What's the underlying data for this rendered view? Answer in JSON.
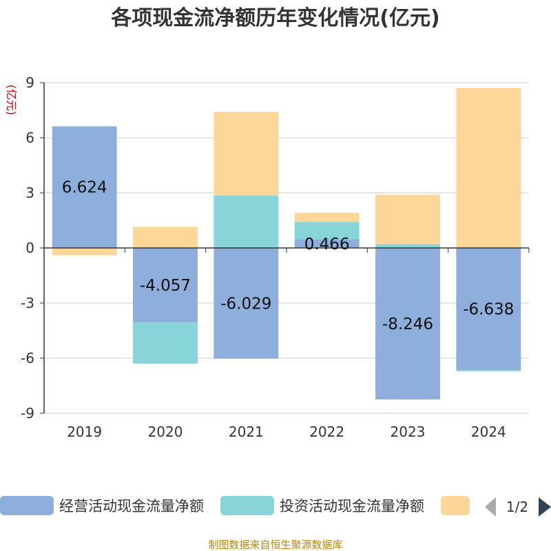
{
  "chart_data": {
    "type": "bar",
    "stacked": true,
    "title": "各项现金流净额历年变化情况(亿元)",
    "ylabel": "(亿元)",
    "xlabel": "",
    "ylim": [
      -9,
      9
    ],
    "yticks": [
      9,
      6,
      3,
      0,
      -3,
      -6,
      -9
    ],
    "grid": true,
    "categories": [
      "2019",
      "2020",
      "2021",
      "2022",
      "2023",
      "2024"
    ],
    "series": [
      {
        "name": "经营活动现金流量净额",
        "color": "#8eaedb",
        "values": [
          6.624,
          -4.057,
          -6.029,
          0.466,
          -8.246,
          -6.638
        ],
        "labels": [
          "6.624",
          "-4.057",
          "-6.029",
          "0.466",
          "-8.246",
          "-6.638"
        ]
      },
      {
        "name": "投资活动现金流量净额",
        "color": "#88d5d9",
        "values": [
          0,
          -2.25,
          2.85,
          0.95,
          0.2,
          -0.08
        ]
      },
      {
        "name": "",
        "color": "#fdd797",
        "values": [
          -0.4,
          1.15,
          4.55,
          0.5,
          2.7,
          8.7
        ]
      }
    ],
    "legend": {
      "position": "bottom",
      "page": "1/2"
    }
  },
  "source": "制图数据来自恒生聚源数据库"
}
